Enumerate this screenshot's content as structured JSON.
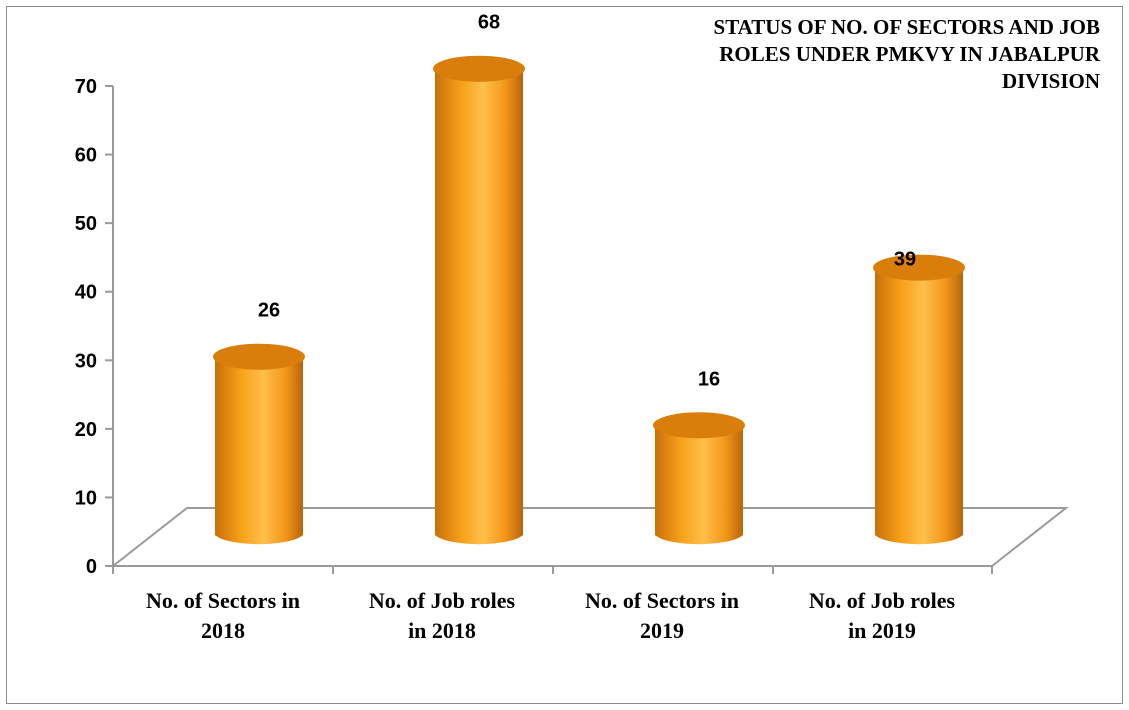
{
  "chart_data": {
    "type": "bar",
    "title": "STATUS OF NO. OF SECTORS AND JOB ROLES UNDER PMKVY IN  JABALPUR DIVISION",
    "title_lines": [
      "STATUS OF NO. OF SECTORS AND JOB",
      "ROLES UNDER PMKVY IN  JABALPUR",
      "DIVISION"
    ],
    "categories": [
      [
        "No. of Sectors in",
        "2018"
      ],
      [
        "No. of Job roles",
        "in 2018"
      ],
      [
        "No. of Sectors in",
        "2019"
      ],
      [
        "No. of Job roles",
        "in 2019"
      ]
    ],
    "values": [
      26,
      68,
      16,
      39
    ],
    "data_labels": [
      "26",
      "68",
      "16",
      "39"
    ],
    "y_ticks": [
      0,
      10,
      20,
      30,
      40,
      50,
      60,
      70
    ],
    "ylim": [
      0,
      70
    ],
    "xlabel": "",
    "ylabel": "",
    "grid": false,
    "legend": "none",
    "style": "3d-cylinder",
    "colors": {
      "bar": "#f7a11a",
      "bar_top": "#d97e0a",
      "axis": "#9a9a9a"
    }
  }
}
